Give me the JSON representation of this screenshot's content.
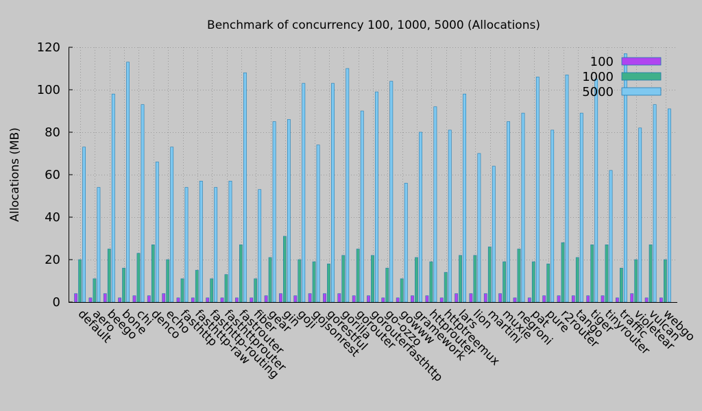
{
  "chart_data": {
    "type": "bar",
    "title": "Benchmark of concurrency 100, 1000, 5000 (Allocations)",
    "xlabel": "",
    "ylabel": "Allocations (MB)",
    "ylim": [
      0,
      120
    ],
    "yticks": [
      0,
      20,
      40,
      60,
      80,
      100,
      120
    ],
    "grid": true,
    "legend_position": "top-right",
    "categories": [
      "default",
      "aero",
      "beego",
      "bone",
      "chi",
      "denco",
      "echo",
      "fasthttp",
      "fasthttp-raw",
      "fasthttp-routing",
      "fasthttprouter",
      "fastrouter",
      "fiber",
      "gear",
      "gin",
      "goji",
      "gojsonrest",
      "gorestful",
      "gorilla",
      "gorouter",
      "gorouterfasthttp",
      "go-ozzo",
      "gowww",
      "gramework",
      "httprouter",
      "httptreemux",
      "lars",
      "lion",
      "martini",
      "muxie",
      "negroni",
      "pat",
      "pure",
      "r2router",
      "tango",
      "tiger",
      "tinyrouter",
      "traffic",
      "violetear",
      "vulcan",
      "webgo"
    ],
    "series": [
      {
        "name": "100",
        "color": "#b044f0",
        "values": [
          4,
          2,
          4,
          2,
          3,
          3,
          4,
          2,
          2,
          2,
          2,
          2,
          2,
          3,
          4,
          3,
          4,
          4,
          4,
          3,
          3,
          2,
          2,
          3,
          3,
          2,
          4,
          4,
          4,
          4,
          2,
          2,
          3,
          3,
          3,
          3,
          3,
          2,
          4,
          2,
          2
        ]
      },
      {
        "name": "1000",
        "color": "#3fb08a",
        "values": [
          20,
          11,
          25,
          16,
          23,
          27,
          20,
          11,
          15,
          11,
          13,
          27,
          11,
          21,
          31,
          20,
          19,
          18,
          22,
          25,
          22,
          16,
          11,
          21,
          19,
          14,
          22,
          22,
          26,
          19,
          25,
          19,
          18,
          28,
          21,
          27,
          27,
          16,
          20,
          27,
          20
        ]
      },
      {
        "name": "5000",
        "color": "#7ec8f0",
        "values": [
          73,
          54,
          98,
          113,
          93,
          66,
          73,
          54,
          57,
          54,
          57,
          108,
          53,
          85,
          86,
          103,
          74,
          103,
          110,
          90,
          99,
          104,
          56,
          80,
          92,
          81,
          98,
          70,
          64,
          85,
          89,
          106,
          81,
          107,
          89,
          105,
          62,
          117,
          82,
          93,
          91
        ]
      }
    ]
  }
}
